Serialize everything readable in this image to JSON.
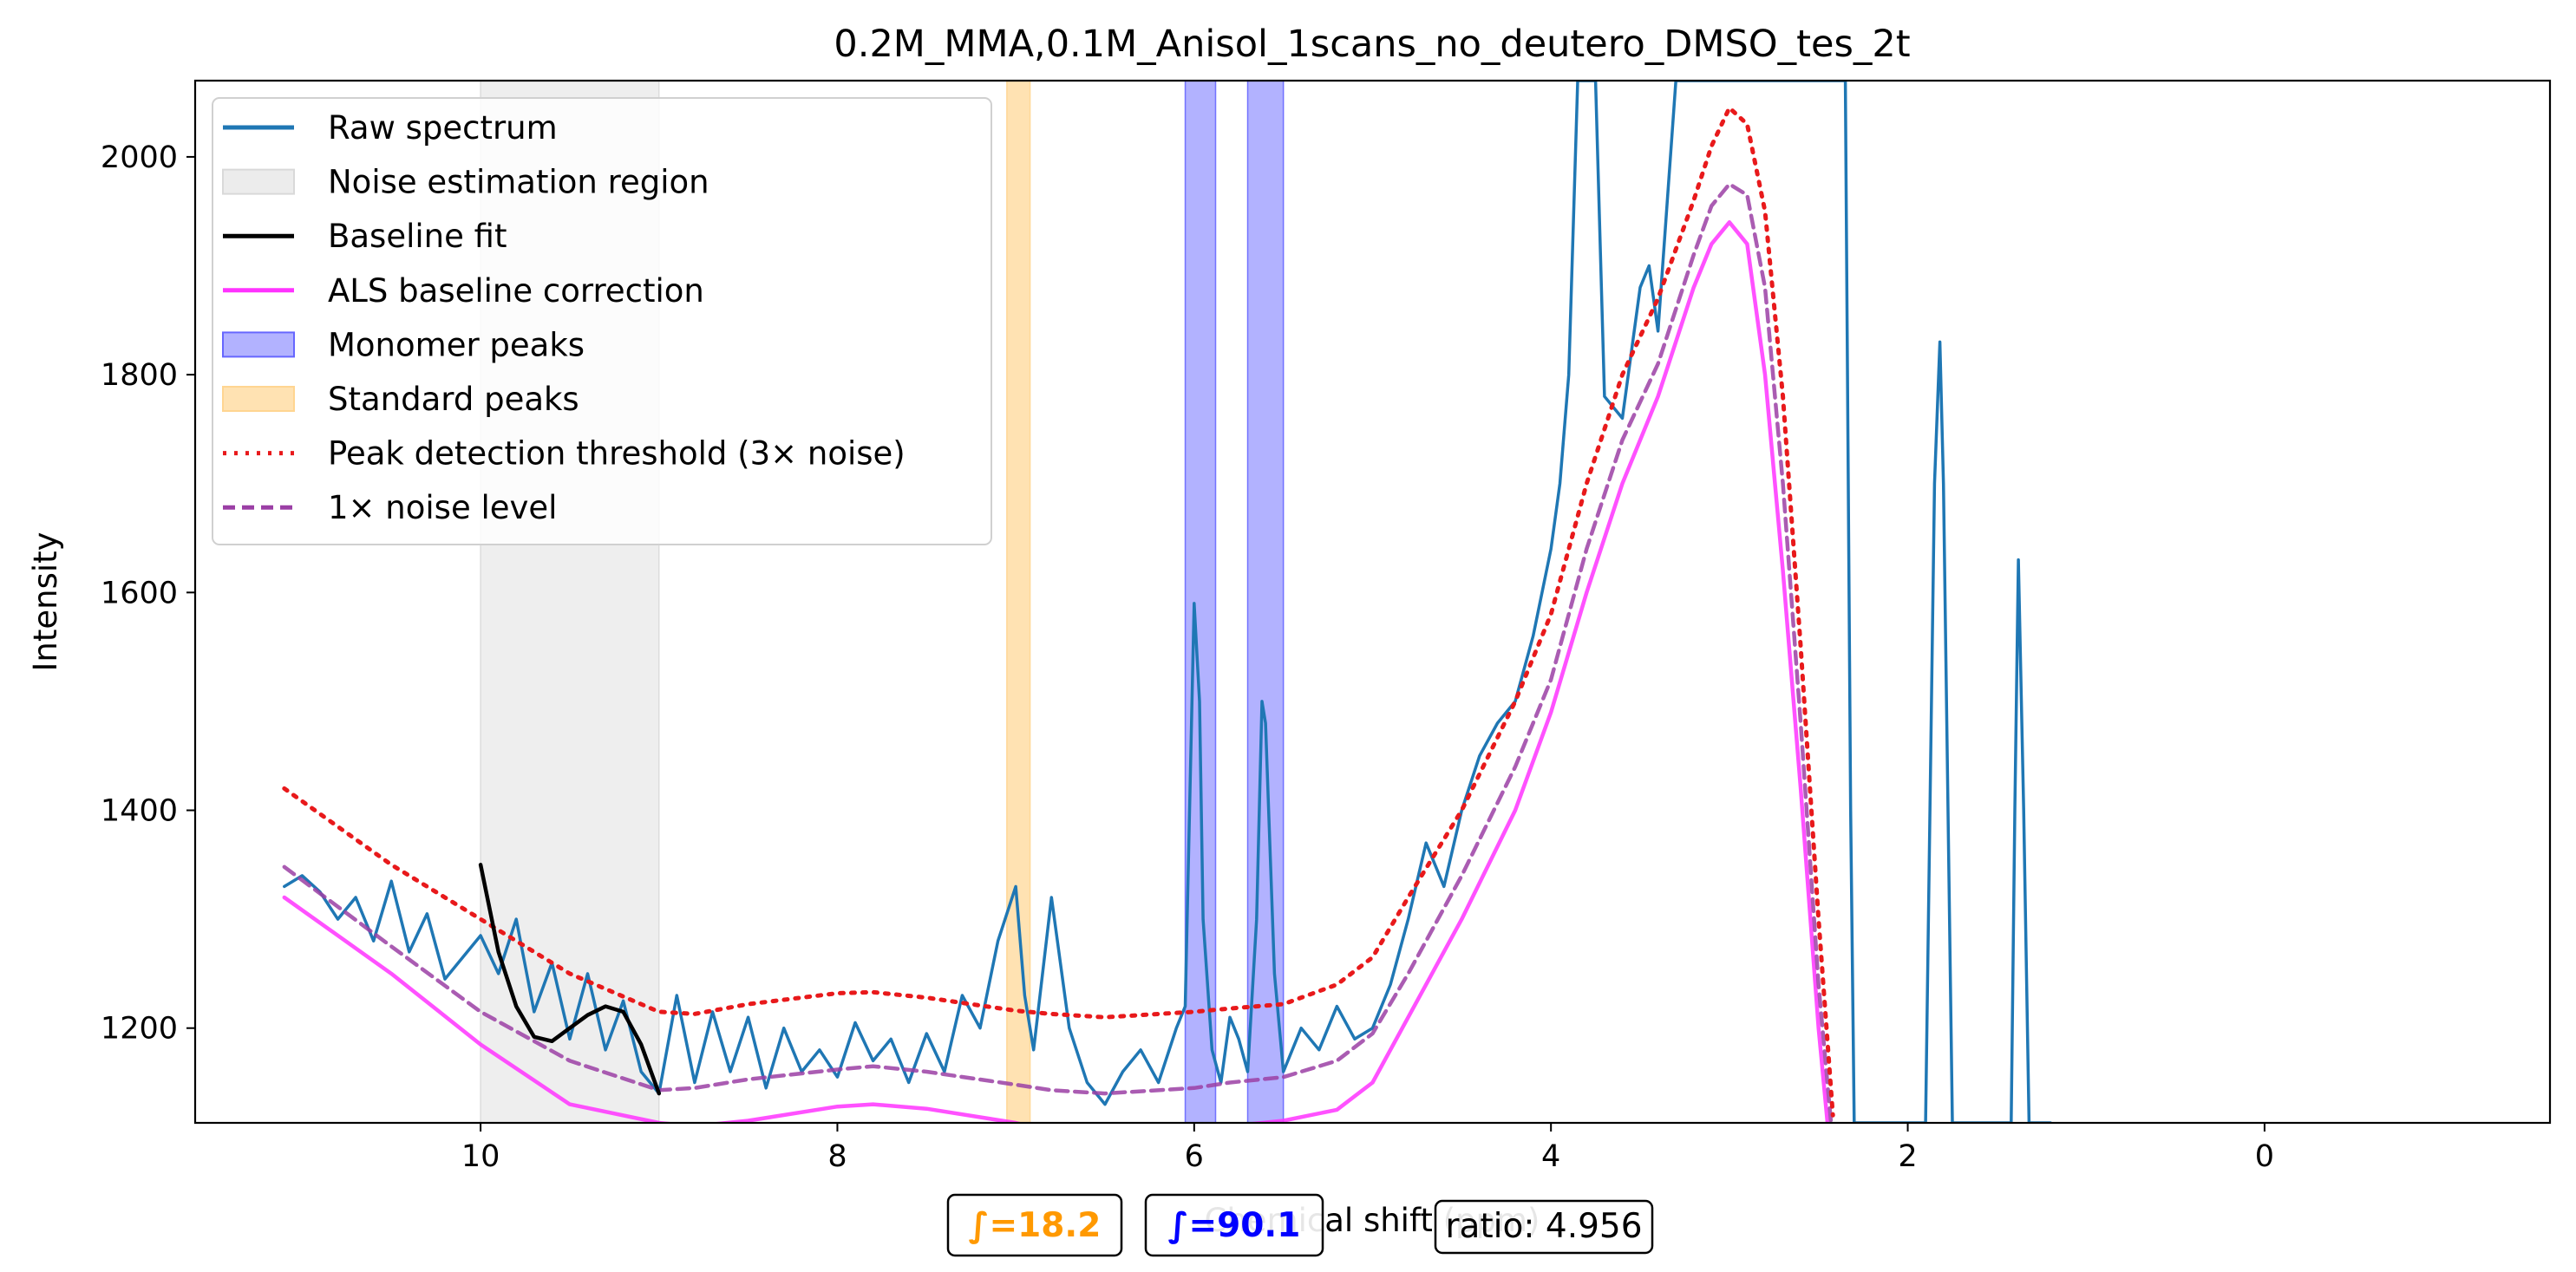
{
  "chart_data": {
    "type": "line",
    "title": "0.2M_MMA,0.1M_Anisol_1scans_no_deutero_DMSO_tes_2t",
    "xlabel": "Chemical shift (ppm)",
    "ylabel": "Intensity",
    "xlim": [
      11.6,
      -1.6
    ],
    "x_reversed": true,
    "ylim": [
      1113,
      2070
    ],
    "xticks": [
      10,
      8,
      6,
      4,
      2,
      0
    ],
    "yticks": [
      1200,
      1400,
      1600,
      1800,
      2000
    ],
    "grid": false,
    "legend_position": "upper-left",
    "legend": [
      {
        "label": "Raw spectrum",
        "kind": "line",
        "color": "#1f77b4",
        "style": "solid"
      },
      {
        "label": "Noise estimation region",
        "kind": "patch",
        "color": "#d9d9d9"
      },
      {
        "label": "Baseline fit",
        "kind": "line",
        "color": "#000000",
        "style": "solid"
      },
      {
        "label": "ALS baseline correction",
        "kind": "line",
        "color": "#ff33ff",
        "style": "solid"
      },
      {
        "label": "Monomer peaks",
        "kind": "patch",
        "color": "#6666ff"
      },
      {
        "label": "Standard peaks",
        "kind": "patch",
        "color": "#ffd591"
      },
      {
        "label": "Peak detection threshold (3× noise)",
        "kind": "line",
        "color": "#e8191b",
        "style": "dotted"
      },
      {
        "label": "1× noise level",
        "kind": "line",
        "color": "#9b3fa5",
        "style": "dashed"
      }
    ],
    "regions": [
      {
        "name": "Noise estimation region",
        "from": 10.0,
        "to": 9.0,
        "color": "#d9d9d9",
        "opacity": 0.45
      },
      {
        "name": "Standard peaks",
        "from": 7.05,
        "to": 6.92,
        "color": "#ffd591",
        "opacity": 0.7
      },
      {
        "name": "Monomer peaks",
        "from": 6.05,
        "to": 5.88,
        "color": "#6666ff",
        "opacity": 0.5
      },
      {
        "name": "Monomer peaks",
        "from": 5.7,
        "to": 5.5,
        "color": "#6666ff",
        "opacity": 0.5
      }
    ],
    "series": [
      {
        "name": "Raw spectrum",
        "color": "#1f77b4",
        "style": "solid",
        "x": [
          11.1,
          11.0,
          10.9,
          10.8,
          10.7,
          10.6,
          10.5,
          10.4,
          10.3,
          10.2,
          10.1,
          10.0,
          9.9,
          9.8,
          9.7,
          9.6,
          9.5,
          9.4,
          9.3,
          9.2,
          9.1,
          9.0,
          8.9,
          8.8,
          8.7,
          8.6,
          8.5,
          8.4,
          8.3,
          8.2,
          8.1,
          8.0,
          7.9,
          7.8,
          7.7,
          7.6,
          7.5,
          7.4,
          7.3,
          7.2,
          7.1,
          7.0,
          6.95,
          6.9,
          6.8,
          6.7,
          6.6,
          6.5,
          6.4,
          6.3,
          6.2,
          6.1,
          6.05,
          6.0,
          5.97,
          5.95,
          5.9,
          5.85,
          5.8,
          5.75,
          5.7,
          5.65,
          5.62,
          5.6,
          5.55,
          5.5,
          5.4,
          5.3,
          5.2,
          5.1,
          5.0,
          4.9,
          4.8,
          4.7,
          4.6,
          4.5,
          4.4,
          4.3,
          4.2,
          4.1,
          4.0,
          3.95,
          3.9,
          3.85,
          3.8,
          3.75,
          3.7,
          3.6,
          3.5,
          3.45,
          3.4,
          3.3,
          3.2,
          3.1,
          3.0,
          2.95,
          2.9,
          2.85,
          2.8,
          2.7,
          2.6,
          2.5,
          2.45,
          2.4,
          2.35,
          2.32,
          2.3,
          2.2,
          2.1,
          2.0,
          1.95,
          1.9,
          1.85,
          1.82,
          1.8,
          1.75,
          1.7,
          1.6,
          1.5,
          1.42,
          1.4,
          1.38,
          1.35,
          1.32,
          1.3,
          1.25,
          1.2
        ],
        "y": [
          1330,
          1340,
          1325,
          1300,
          1320,
          1280,
          1335,
          1270,
          1305,
          1245,
          1265,
          1285,
          1250,
          1300,
          1215,
          1260,
          1190,
          1250,
          1180,
          1225,
          1160,
          1140,
          1230,
          1150,
          1215,
          1160,
          1210,
          1145,
          1200,
          1160,
          1180,
          1155,
          1205,
          1170,
          1190,
          1150,
          1195,
          1160,
          1230,
          1200,
          1280,
          1330,
          1230,
          1180,
          1320,
          1200,
          1150,
          1130,
          1160,
          1180,
          1150,
          1200,
          1220,
          1590,
          1500,
          1300,
          1180,
          1150,
          1210,
          1190,
          1160,
          1300,
          1500,
          1480,
          1250,
          1160,
          1200,
          1180,
          1220,
          1190,
          1200,
          1240,
          1300,
          1370,
          1330,
          1400,
          1450,
          1480,
          1500,
          1560,
          1640,
          1700,
          1800,
          2070,
          2070,
          2070,
          1780,
          1760,
          1880,
          1900,
          1840,
          2070,
          2070,
          2070,
          2070,
          2070,
          2070,
          2070,
          2070,
          2070,
          2070,
          2070,
          2070,
          2070,
          2070,
          1400,
          1113,
          1113,
          1113,
          1113,
          1113,
          1113,
          1700,
          1830,
          1700,
          1113,
          1113,
          1113,
          1113,
          1113,
          1400,
          1630,
          1400,
          1113,
          1113,
          1113,
          1113
        ]
      },
      {
        "name": "Baseline fit",
        "color": "#000000",
        "style": "solid",
        "x": [
          10.0,
          9.9,
          9.8,
          9.7,
          9.6,
          9.5,
          9.4,
          9.3,
          9.2,
          9.1,
          9.0
        ],
        "y": [
          1350,
          1270,
          1220,
          1192,
          1188,
          1200,
          1212,
          1220,
          1215,
          1185,
          1140
        ]
      },
      {
        "name": "ALS baseline correction",
        "color": "#ff33ff",
        "style": "solid",
        "x": [
          11.1,
          10.5,
          10.0,
          9.5,
          9.0,
          8.8,
          8.5,
          8.0,
          7.8,
          7.5,
          7.0,
          6.8,
          6.5,
          6.0,
          5.8,
          5.5,
          5.2,
          5.0,
          4.8,
          4.5,
          4.2,
          4.0,
          3.8,
          3.6,
          3.4,
          3.2,
          3.1,
          3.0,
          2.9,
          2.8,
          2.7,
          2.6,
          2.5,
          2.45
        ],
        "y": [
          1320,
          1250,
          1185,
          1130,
          1113,
          1110,
          1115,
          1128,
          1130,
          1126,
          1113,
          1105,
          1100,
          1103,
          1110,
          1115,
          1125,
          1150,
          1210,
          1300,
          1400,
          1490,
          1600,
          1700,
          1780,
          1880,
          1920,
          1940,
          1920,
          1800,
          1620,
          1420,
          1200,
          1113
        ]
      },
      {
        "name": "Peak detection threshold (3× noise)",
        "color": "#e8191b",
        "style": "dotted",
        "x": [
          11.1,
          10.5,
          10.0,
          9.5,
          9.0,
          8.8,
          8.5,
          8.0,
          7.8,
          7.5,
          7.0,
          6.8,
          6.5,
          6.0,
          5.8,
          5.5,
          5.2,
          5.0,
          4.8,
          4.5,
          4.2,
          4.0,
          3.8,
          3.6,
          3.4,
          3.2,
          3.1,
          3.0,
          2.9,
          2.8,
          2.7,
          2.6,
          2.5,
          2.42
        ],
        "y": [
          1420,
          1350,
          1300,
          1250,
          1215,
          1213,
          1222,
          1232,
          1233,
          1228,
          1216,
          1213,
          1210,
          1215,
          1218,
          1222,
          1240,
          1265,
          1320,
          1400,
          1500,
          1580,
          1700,
          1800,
          1870,
          1960,
          2010,
          2045,
          2030,
          1950,
          1780,
          1550,
          1300,
          1120
        ]
      },
      {
        "name": "1× noise level",
        "color": "#9b3fa5",
        "style": "dashed",
        "x": [
          11.1,
          10.5,
          10.0,
          9.5,
          9.0,
          8.8,
          8.5,
          8.0,
          7.8,
          7.5,
          7.0,
          6.8,
          6.5,
          6.0,
          5.8,
          5.5,
          5.2,
          5.0,
          4.8,
          4.5,
          4.2,
          4.0,
          3.8,
          3.6,
          3.4,
          3.2,
          3.1,
          3.0,
          2.9,
          2.8,
          2.7,
          2.6,
          2.5,
          2.43
        ],
        "y": [
          1348,
          1275,
          1215,
          1170,
          1143,
          1145,
          1153,
          1162,
          1165,
          1160,
          1148,
          1143,
          1140,
          1145,
          1150,
          1155,
          1170,
          1195,
          1250,
          1340,
          1440,
          1520,
          1640,
          1740,
          1810,
          1910,
          1955,
          1975,
          1965,
          1880,
          1700,
          1480,
          1240,
          1113
        ]
      }
    ],
    "annotations": [
      {
        "text": "∫=18.2",
        "color": "#ff9900",
        "bold": true
      },
      {
        "text": "∫=90.1",
        "color": "#0000ff",
        "bold": true
      },
      {
        "text": "ratio: 4.956",
        "color": "#000000",
        "bold": false
      }
    ]
  }
}
